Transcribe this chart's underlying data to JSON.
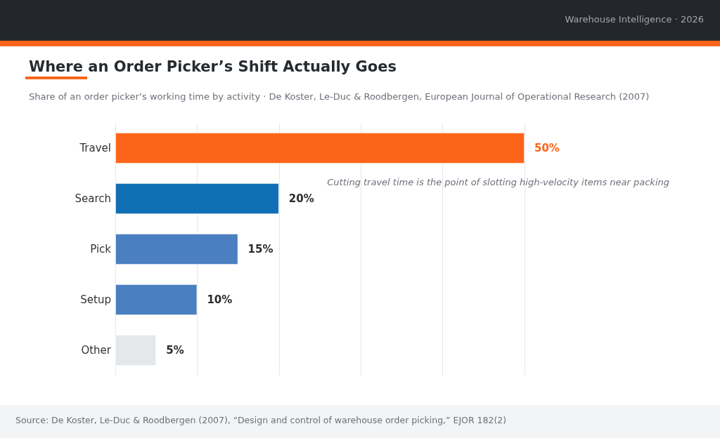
{
  "chart_data": {
    "type": "bar",
    "orientation": "horizontal",
    "title": "Where an Order Picker’s Shift Actually Goes",
    "subtitle": "Share of an order picker’s working time by activity · De Koster, Le-Duc & Roodbergen, European Journal of Operational Research (2007)",
    "categories": [
      "Travel",
      "Search",
      "Pick",
      "Setup",
      "Other"
    ],
    "values": [
      50,
      20,
      15,
      10,
      5
    ],
    "colors": [
      "#fc6519",
      "#106eb4",
      "#4a7fc1",
      "#4a7fc1",
      "#e4e8eb"
    ],
    "value_labels": [
      "50%",
      "20%",
      "15%",
      "10%",
      "5%"
    ],
    "xlim": [
      0,
      50
    ],
    "xticks": [
      {
        "value": 0,
        "label": null
      },
      {
        "value": 10,
        "label": null
      },
      {
        "value": 20,
        "label": null
      },
      {
        "value": 30,
        "label": null
      },
      {
        "value": 40,
        "label": null
      },
      {
        "value": 50,
        "label": null
      }
    ],
    "grid": "x",
    "tick_labels": "y",
    "annotations": [
      "Warehouse Intelligence · 2026",
      "Cutting travel time is the point of slotting high-velocity items near packing",
      "Source: De Koster, Le-Duc & Roodbergen (2007), “Design and control of warehouse order picking,” EJOR 182(2)"
    ]
  }
}
